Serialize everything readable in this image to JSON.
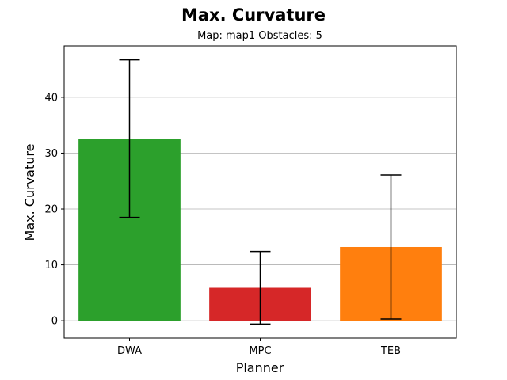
{
  "chart_data": {
    "type": "bar",
    "title": "Max. Curvature",
    "subtitle": "Map: map1 Obstacles: 5",
    "xlabel": "Planner",
    "ylabel": "Max. Curvature",
    "categories": [
      "DWA",
      "MPC",
      "TEB"
    ],
    "values": [
      32.6,
      5.9,
      13.2
    ],
    "error": [
      14.1,
      6.5,
      12.9
    ],
    "colors": [
      "#2ca02c",
      "#d62728",
      "#ff7f0e"
    ],
    "ylim": [
      -3.1,
      49.2
    ],
    "yticks": [
      0,
      10,
      20,
      30,
      40
    ],
    "grid": "y",
    "legend": "none"
  }
}
